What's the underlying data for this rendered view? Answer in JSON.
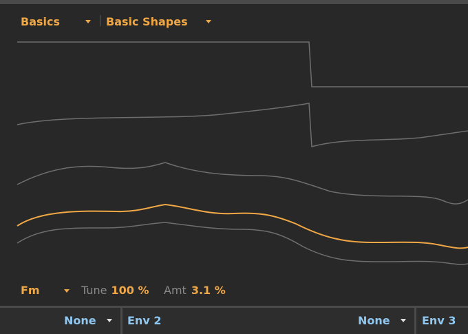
{
  "header": {
    "category_dropdown": "Basics",
    "preset_dropdown": "Basic Shapes"
  },
  "oscillator": {
    "mode_label": "Fm",
    "tune_label": "Tune",
    "tune_value": "100 %",
    "amt_label": "Amt",
    "amt_value": "3.1 %"
  },
  "modulation": {
    "slot1_source": "None",
    "slot2_name": "Env 2",
    "slot2_source": "None",
    "slot3_name": "Env 3"
  },
  "colors": {
    "accent": "#f0a745",
    "wave_inactive": "#6e6e6e",
    "mod_text": "#8fc7f0"
  }
}
